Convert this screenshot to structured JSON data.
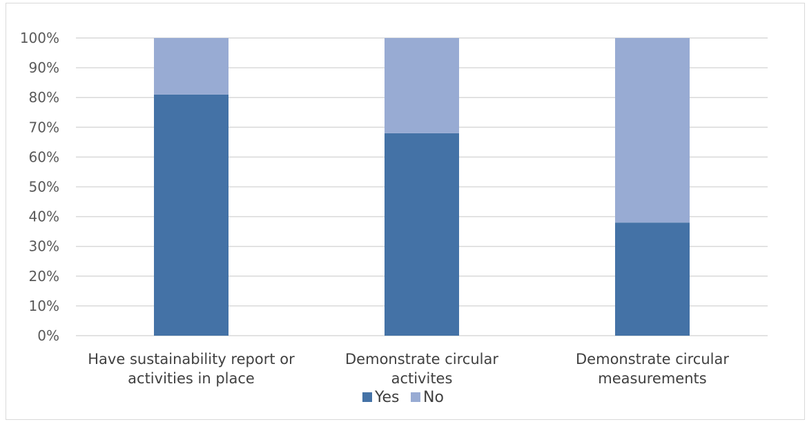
{
  "chart_data": {
    "type": "bar",
    "stacked": true,
    "categories": [
      [
        "Have sustainability report or",
        "activities in place"
      ],
      [
        "Demonstrate circular",
        "activites"
      ],
      [
        "Demonstrate circular",
        "measurements"
      ]
    ],
    "series": [
      {
        "name": "Yes",
        "values": [
          81,
          68,
          38
        ],
        "color": "#4472a6"
      },
      {
        "name": "No",
        "values": [
          19,
          32,
          62
        ],
        "color": "#98abd3"
      }
    ],
    "ylim": [
      0,
      100
    ],
    "yticks": [
      "0%",
      "10%",
      "20%",
      "30%",
      "40%",
      "50%",
      "60%",
      "70%",
      "80%",
      "90%",
      "100%"
    ],
    "grid": true,
    "legend_position": "bottom",
    "gridline_color": "#d9d9d9"
  }
}
